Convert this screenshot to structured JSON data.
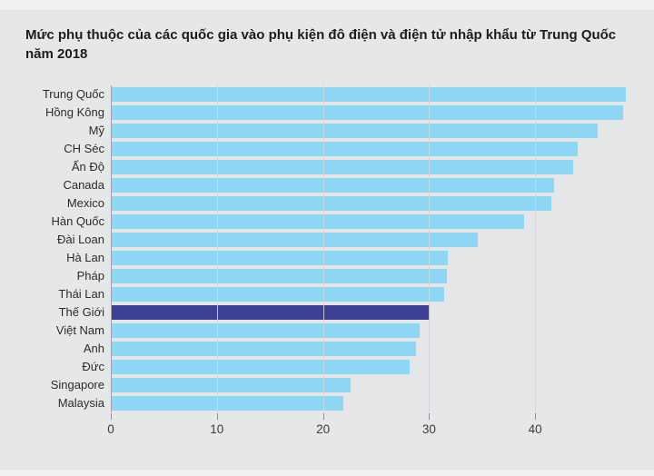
{
  "colors": {
    "background": "#e6e7e8",
    "edge_strip": "#f1f1f2",
    "bar": "#8fd8f5",
    "highlight_bar": "#3d4095",
    "gridline": "#d2d4da",
    "axis": "#8f9094",
    "title_text": "#1c1c1c",
    "label_text": "#2b2b2b"
  },
  "chart_data": {
    "type": "bar",
    "orientation": "horizontal",
    "title": "Mức phụ thuộc của các quốc gia vào phụ kiện đô điện và điện tử nhập khẩu từ Trung Quốc năm 2018",
    "categories": [
      "Trung Quốc",
      "Hồng Kông",
      "Mỹ",
      "CH Séc",
      "Ấn Độ",
      "Canada",
      "Mexico",
      "Hàn Quốc",
      "Đài Loan",
      "Hà Lan",
      "Pháp",
      "Thái Lan",
      "Thế Giới",
      "Việt Nam",
      "Anh",
      "Đức",
      "Singapore",
      "Malaysia"
    ],
    "values": [
      48.5,
      48.2,
      45.8,
      43.9,
      43.5,
      41.7,
      41.4,
      38.9,
      34.5,
      31.7,
      31.6,
      31.3,
      30,
      29,
      28.7,
      28.1,
      22.5,
      21.8
    ],
    "highlight_category": "Thế Giới",
    "xlabel": "",
    "ylabel": "",
    "xlim": [
      0,
      50
    ],
    "x_ticks": [
      0,
      10,
      20,
      30,
      40
    ],
    "grid": true,
    "legend": false
  }
}
